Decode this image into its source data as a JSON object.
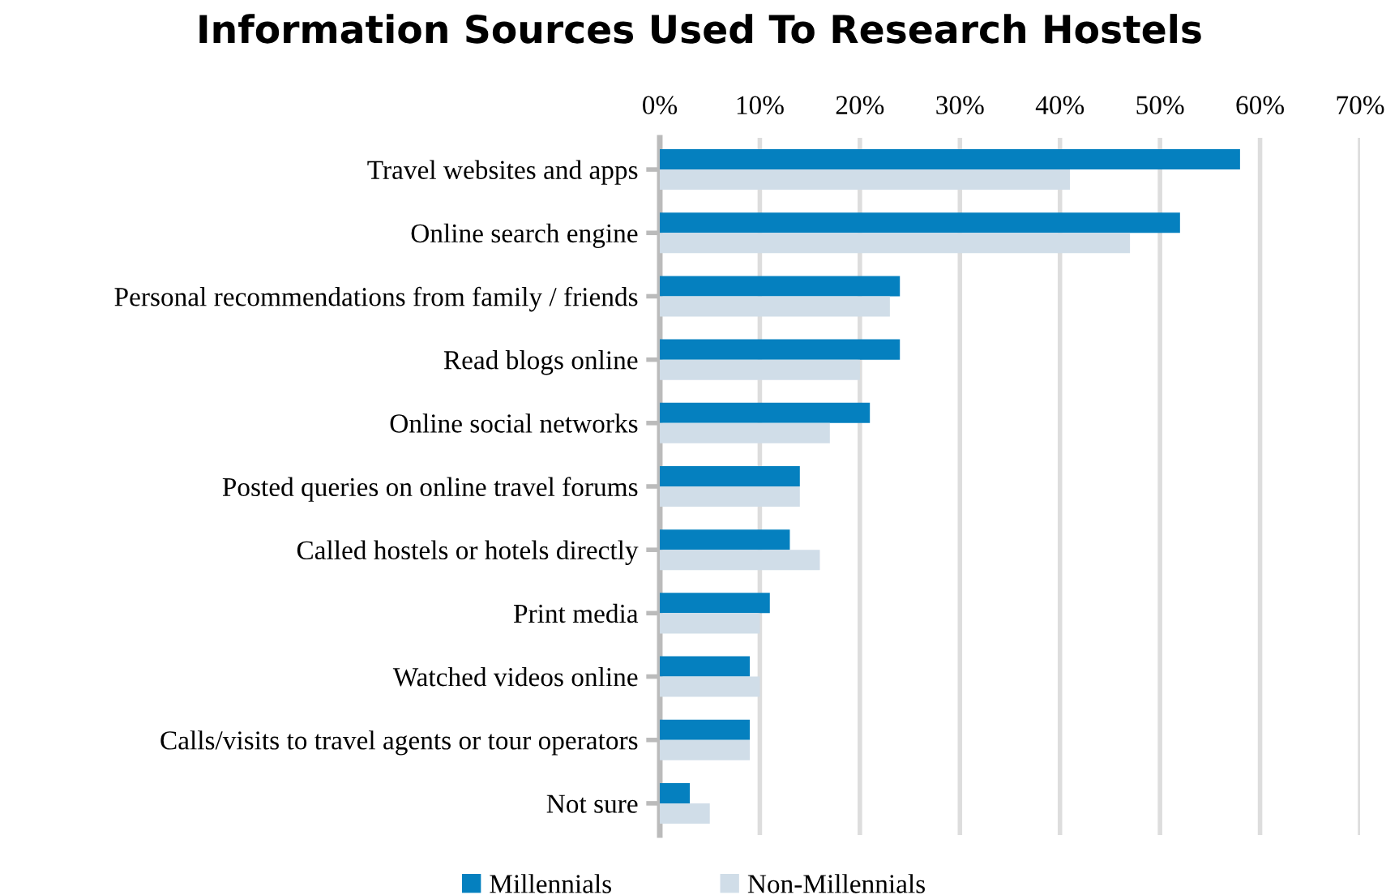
{
  "chart_data": {
    "type": "bar",
    "orientation": "horizontal",
    "title": "Information Sources Used To Research Hostels",
    "categories": [
      "Travel websites and apps",
      "Online search engine",
      "Personal recommendations from family / friends",
      "Read blogs online",
      "Online social networks",
      "Posted queries on online travel forums",
      "Called hostels or hotels directly",
      "Print media",
      "Watched videos online",
      "Calls/visits to travel agents or tour operators",
      "Not sure"
    ],
    "series": [
      {
        "name": "Millennials",
        "color": "#0580bf",
        "values": [
          58,
          52,
          24,
          24,
          21,
          14,
          13,
          11,
          9,
          9,
          3
        ]
      },
      {
        "name": "Non-Millennials",
        "color": "#d0dde8",
        "values": [
          41,
          47,
          23,
          20,
          17,
          14,
          16,
          10,
          10,
          9,
          5
        ]
      }
    ],
    "xlim": [
      0,
      70
    ],
    "xticks": [
      {
        "value": 0,
        "label": "0%"
      },
      {
        "value": 10,
        "label": "10%"
      },
      {
        "value": 20,
        "label": "20%"
      },
      {
        "value": 30,
        "label": "30%"
      },
      {
        "value": 40,
        "label": "40%"
      },
      {
        "value": 50,
        "label": "50%"
      },
      {
        "value": 60,
        "label": "60%"
      },
      {
        "value": 70,
        "label": "70%"
      }
    ],
    "grid": "x",
    "legend": "bottom"
  }
}
